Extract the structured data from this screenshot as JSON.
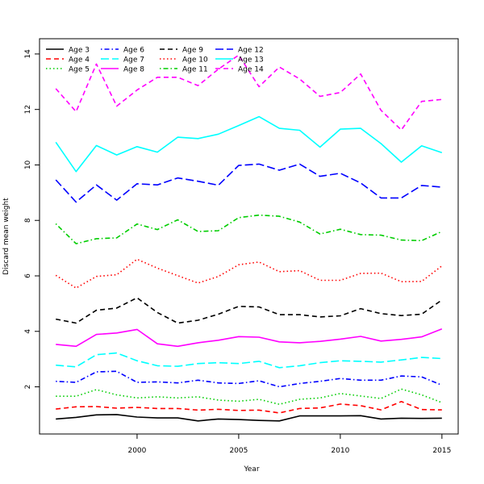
{
  "chart_data": {
    "type": "line",
    "title": "",
    "xlabel": "Year",
    "ylabel": "Discard mean weight",
    "xlim": [
      1995.2,
      2015.8
    ],
    "ylim": [
      0.3,
      14.55
    ],
    "xticks": [
      2000,
      2005,
      2010,
      2015
    ],
    "yticks": [
      2,
      4,
      6,
      8,
      10,
      12,
      14
    ],
    "grid": false,
    "legend_position": "top-left",
    "x": [
      1996,
      1997,
      1998,
      1999,
      2000,
      2001,
      2002,
      2003,
      2004,
      2005,
      2006,
      2007,
      2008,
      2009,
      2010,
      2011,
      2012,
      2013,
      2014,
      2015
    ],
    "series": [
      {
        "name": "Age 3",
        "color": "#000000",
        "dash": "solid",
        "values": [
          0.84,
          0.9,
          0.99,
          1.0,
          0.91,
          0.88,
          0.88,
          0.77,
          0.84,
          0.82,
          0.79,
          0.77,
          0.95,
          0.95,
          0.95,
          0.96,
          0.84,
          0.87,
          0.86,
          0.87
        ]
      },
      {
        "name": "Age 4",
        "color": "#ff0000",
        "dash": "dashed",
        "values": [
          1.2,
          1.28,
          1.29,
          1.23,
          1.26,
          1.22,
          1.22,
          1.16,
          1.19,
          1.15,
          1.16,
          1.06,
          1.22,
          1.24,
          1.38,
          1.32,
          1.17,
          1.47,
          1.18,
          1.17
        ]
      },
      {
        "name": "Age 5",
        "color": "#00cd00",
        "dash": "dotted",
        "values": [
          1.66,
          1.66,
          1.9,
          1.71,
          1.6,
          1.64,
          1.6,
          1.64,
          1.52,
          1.48,
          1.55,
          1.37,
          1.55,
          1.6,
          1.76,
          1.67,
          1.58,
          1.92,
          1.71,
          1.43
        ]
      },
      {
        "name": "Age 6",
        "color": "#0000ff",
        "dash": "dotdash",
        "values": [
          2.2,
          2.16,
          2.54,
          2.56,
          2.16,
          2.18,
          2.14,
          2.24,
          2.14,
          2.12,
          2.22,
          2.0,
          2.12,
          2.2,
          2.3,
          2.24,
          2.24,
          2.39,
          2.36,
          2.06
        ]
      },
      {
        "name": "Age 7",
        "color": "#00ffff",
        "dash": "longdash",
        "values": [
          2.78,
          2.72,
          3.16,
          3.22,
          2.94,
          2.76,
          2.74,
          2.84,
          2.87,
          2.84,
          2.92,
          2.69,
          2.76,
          2.87,
          2.94,
          2.92,
          2.89,
          2.97,
          3.06,
          3.02
        ]
      },
      {
        "name": "Age 8",
        "color": "#ff00ff",
        "dash": "solid",
        "values": [
          3.53,
          3.46,
          3.89,
          3.94,
          4.07,
          3.55,
          3.46,
          3.59,
          3.68,
          3.81,
          3.79,
          3.62,
          3.59,
          3.64,
          3.72,
          3.82,
          3.65,
          3.71,
          3.8,
          4.09
        ]
      },
      {
        "name": "Age 9",
        "color": "#000000",
        "dash": "dashed",
        "values": [
          4.44,
          4.3,
          4.76,
          4.84,
          5.21,
          4.68,
          4.3,
          4.4,
          4.62,
          4.9,
          4.88,
          4.6,
          4.6,
          4.52,
          4.56,
          4.82,
          4.64,
          4.57,
          4.62,
          5.13
        ]
      },
      {
        "name": "Age 10",
        "color": "#ff0000",
        "dash": "dotted",
        "values": [
          6.02,
          5.56,
          5.98,
          6.04,
          6.6,
          6.28,
          6.01,
          5.74,
          5.98,
          6.4,
          6.5,
          6.15,
          6.19,
          5.84,
          5.84,
          6.09,
          6.1,
          5.79,
          5.8,
          6.36
        ]
      },
      {
        "name": "Age 11",
        "color": "#00cd00",
        "dash": "dotdash",
        "values": [
          7.88,
          7.16,
          7.34,
          7.37,
          7.87,
          7.67,
          8.02,
          7.6,
          7.63,
          8.1,
          8.19,
          8.15,
          7.94,
          7.51,
          7.68,
          7.49,
          7.47,
          7.29,
          7.27,
          7.6
        ]
      },
      {
        "name": "Age 12",
        "color": "#0000ff",
        "dash": "longdash",
        "values": [
          9.46,
          8.66,
          9.28,
          8.73,
          9.32,
          9.28,
          9.53,
          9.41,
          9.27,
          9.98,
          10.03,
          9.81,
          10.03,
          9.59,
          9.7,
          9.35,
          8.81,
          8.81,
          9.26,
          9.2
        ]
      },
      {
        "name": "Age 13",
        "color": "#00ffff",
        "dash": "solid",
        "values": [
          10.82,
          9.76,
          10.7,
          10.36,
          10.66,
          10.46,
          11.0,
          10.95,
          11.11,
          11.42,
          11.74,
          11.32,
          11.25,
          10.64,
          11.29,
          11.32,
          10.77,
          10.1,
          10.69,
          10.44
        ]
      },
      {
        "name": "Age 14",
        "color": "#ff00ff",
        "dash": "dashed",
        "values": [
          12.75,
          11.92,
          13.64,
          12.12,
          12.7,
          13.16,
          13.16,
          12.86,
          13.45,
          13.96,
          12.82,
          13.53,
          13.1,
          12.47,
          12.61,
          13.28,
          11.97,
          11.26,
          12.29,
          12.36
        ]
      }
    ]
  }
}
